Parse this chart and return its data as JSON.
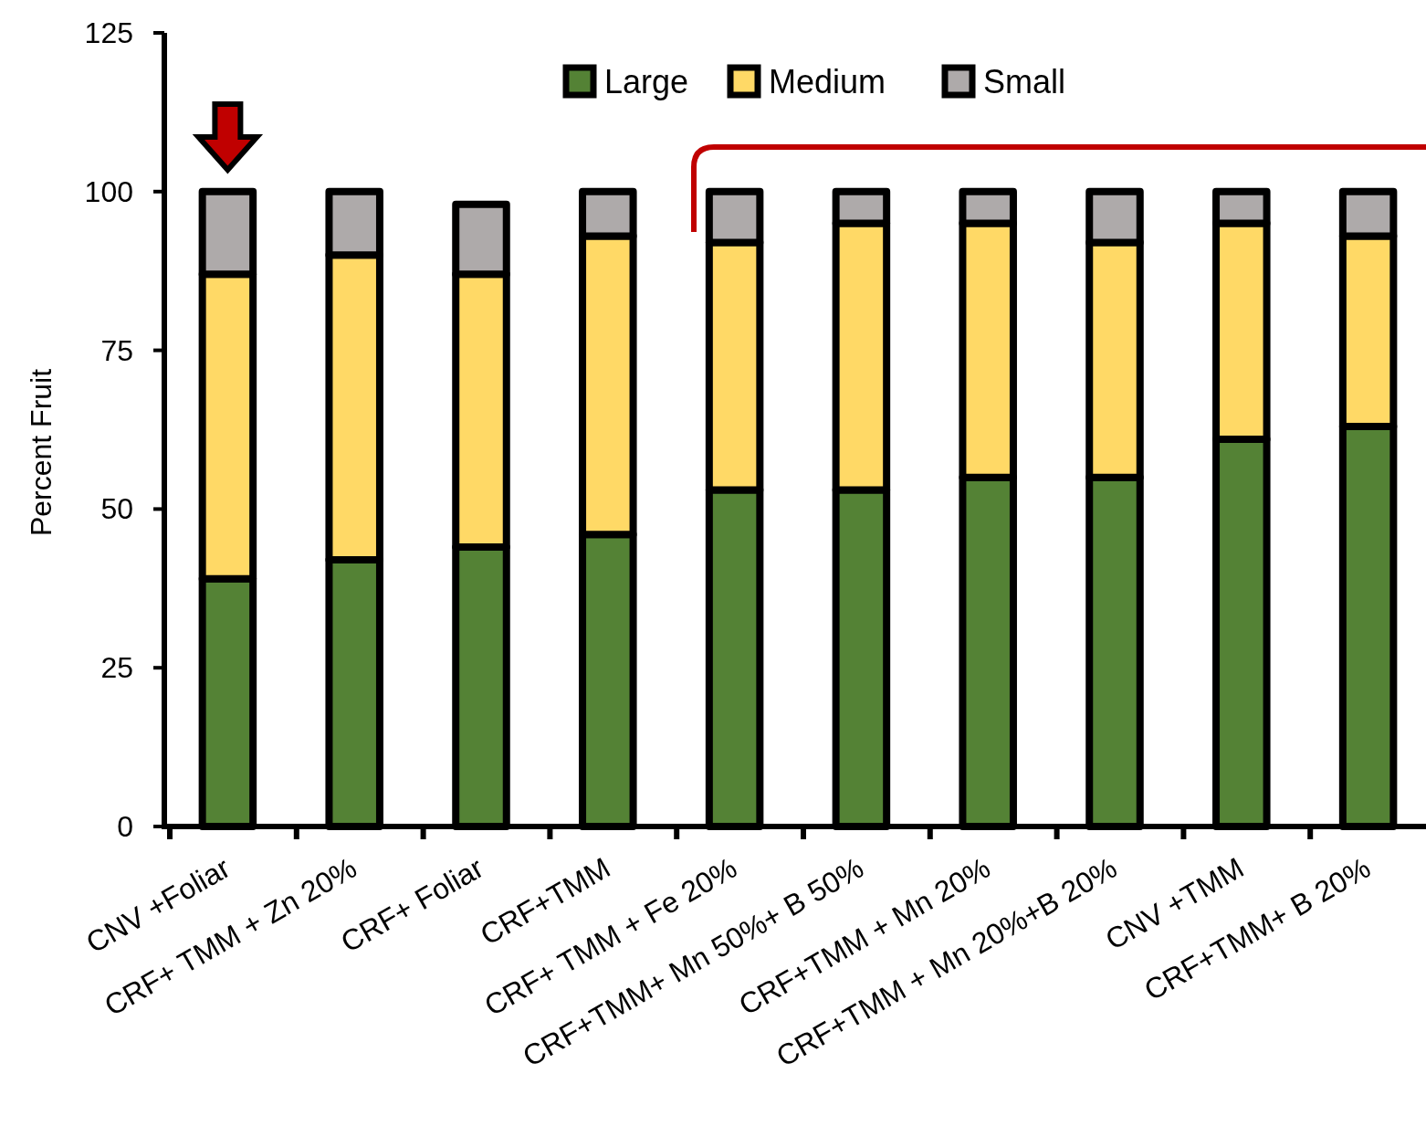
{
  "chart_data": {
    "type": "bar",
    "stacked": true,
    "ylabel": "Percent Fruit",
    "categories": [
      "CNV +Foliar",
      "CRF+ TMM + Zn  20%",
      "CRF+ Foliar",
      "CRF+TMM",
      "CRF+ TMM + Fe 20%",
      "CRF+TMM+ Mn 50%+ B 50%",
      "CRF+TMM + Mn 20%",
      "CRF+TMM + Mn 20%+B 20%",
      "CNV +TMM",
      "CRF+TMM+ B  20%"
    ],
    "series": [
      {
        "name": "Large",
        "color": "#548235",
        "values": [
          39,
          42,
          44,
          46,
          53,
          53,
          55,
          55,
          61,
          63
        ]
      },
      {
        "name": "Medium",
        "color": "#ffd966",
        "values": [
          48,
          48,
          43,
          47,
          39,
          42,
          40,
          37,
          34,
          30
        ]
      },
      {
        "name": "Small",
        "color": "#aeaaaa",
        "values": [
          13,
          10,
          11,
          7,
          8,
          5,
          5,
          8,
          5,
          7
        ]
      }
    ],
    "ylim": [
      0,
      125
    ],
    "yticks": [
      0,
      25,
      50,
      75,
      100,
      125
    ],
    "grid": false,
    "legend": "top"
  }
}
